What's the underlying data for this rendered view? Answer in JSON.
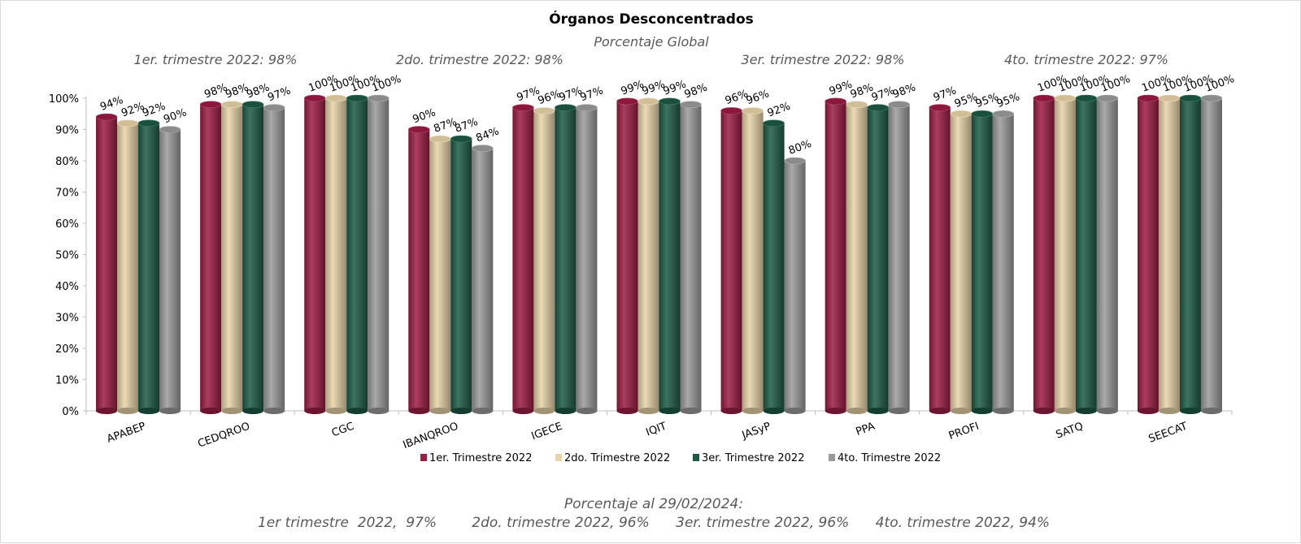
{
  "chart_data": {
    "type": "bar",
    "title": "Órganos Desconcentrados",
    "subtitle": "Porcentaje Global",
    "quarter_summaries": [
      "1er. trimestre 2022: 98%",
      "2do. trimestre 2022: 98%",
      "3er. trimestre 2022: 98%",
      "4to. trimestre 2022: 97%"
    ],
    "categories": [
      "APABEP",
      "CEDQROO",
      "CGC",
      "IBANQROO",
      "IGECE",
      "IQIT",
      "JASyP",
      "PPA",
      "PROFI",
      "SATQ",
      "SEECAT"
    ],
    "series": [
      {
        "name": "1er. Trimestre 2022",
        "color": "#9b1c44",
        "values": [
          94,
          98,
          100,
          90,
          97,
          99,
          96,
          99,
          97,
          100,
          100
        ]
      },
      {
        "name": "2do. Trimestre 2022",
        "color": "#e6d3a7",
        "values": [
          92,
          98,
          100,
          87,
          96,
          99,
          96,
          98,
          95,
          100,
          100
        ]
      },
      {
        "name": "3er. Trimestre 2022",
        "color": "#1d5a45",
        "values": [
          92,
          98,
          100,
          87,
          97,
          99,
          92,
          97,
          95,
          100,
          100
        ]
      },
      {
        "name": "4to. Trimestre 2022",
        "color": "#9a9a9a",
        "values": [
          90,
          97,
          100,
          84,
          97,
          98,
          80,
          98,
          95,
          100,
          100
        ]
      }
    ],
    "ylim": [
      0,
      100
    ],
    "ytick_labels": [
      "0%",
      "10%",
      "20%",
      "30%",
      "40%",
      "50%",
      "60%",
      "70%",
      "80%",
      "90%",
      "100%"
    ],
    "grid": false,
    "legend_position": "bottom",
    "footer_line1": "Porcentaje al 29/02/2024:",
    "footer_line2": "1er trimestre  2022,  97%        2do. trimestre 2022, 96%      3er. trimestre 2022, 96%      4to. trimestre 2022, 94%"
  }
}
